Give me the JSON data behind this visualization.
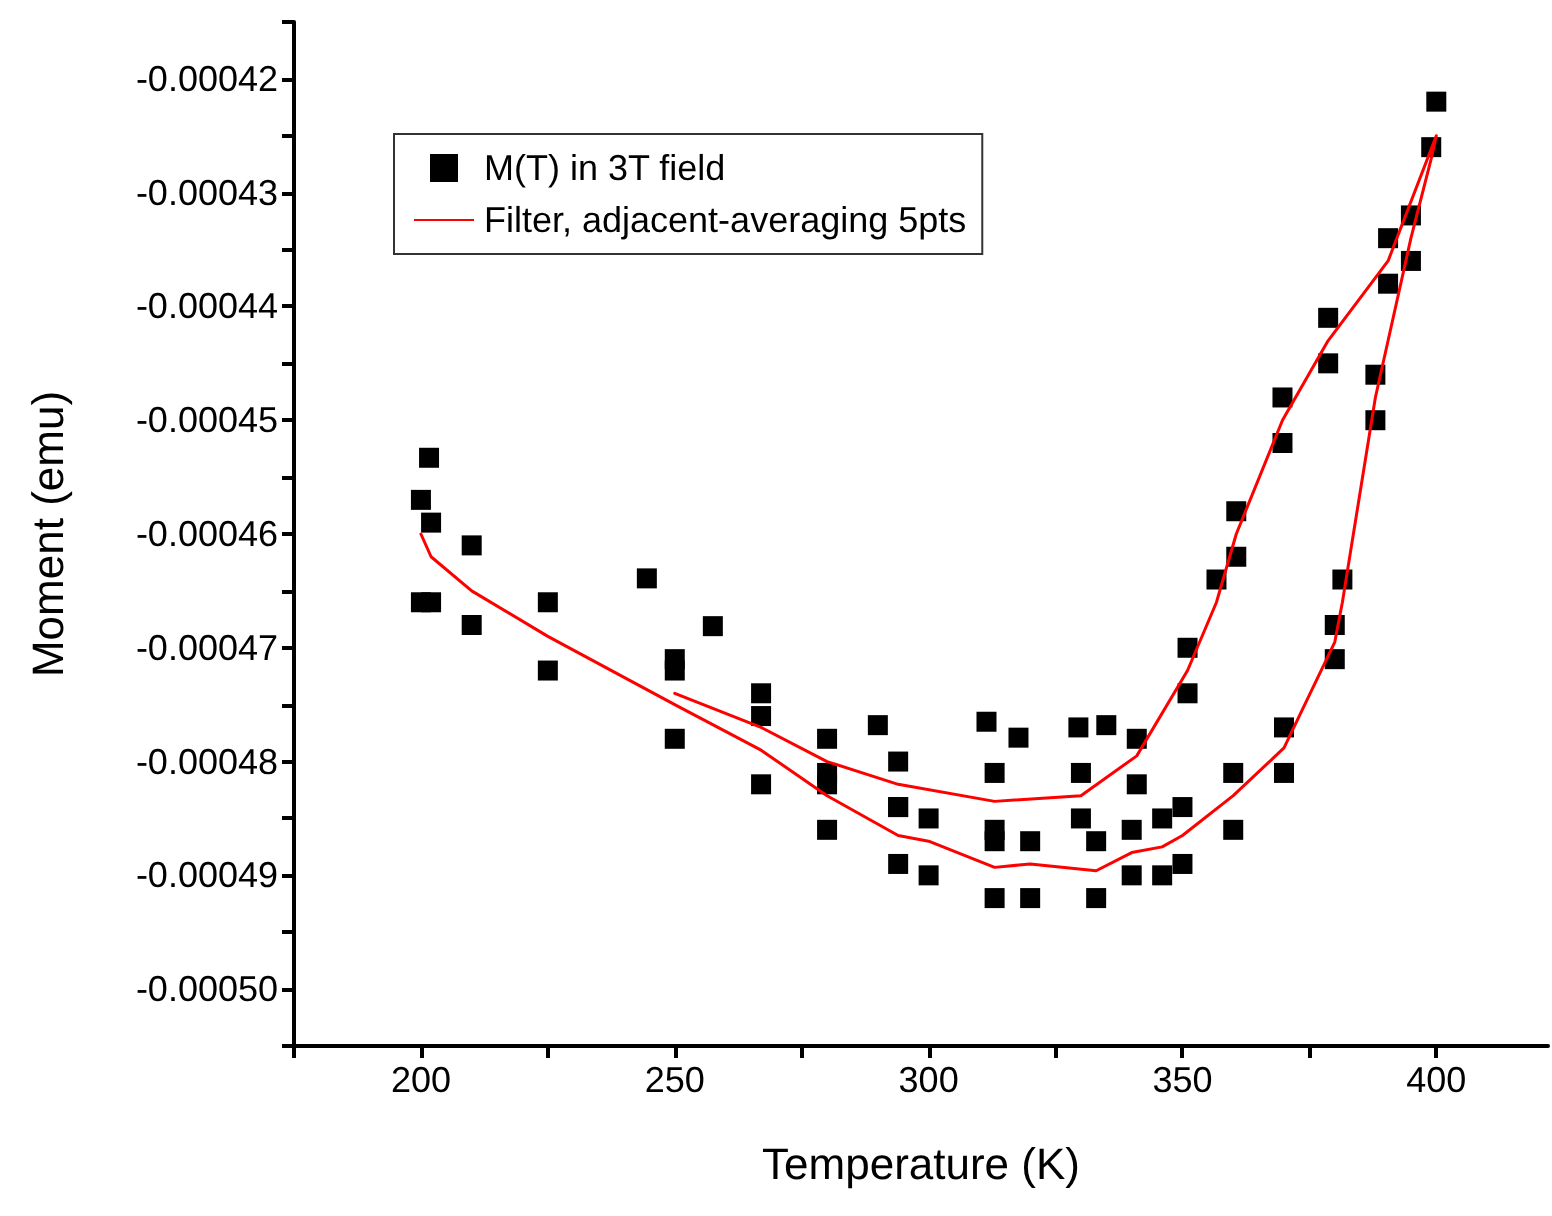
{
  "chart_data": {
    "type": "scatter",
    "xlabel": "Temperature (K)",
    "ylabel": "Moment (emu)",
    "xlim": [
      175,
      422
    ],
    "ylim": [
      -0.000505,
      -0.000415
    ],
    "xticks": [
      {
        "value": 175,
        "label": null
      },
      200,
      {
        "value": 225,
        "label": null
      },
      250,
      {
        "value": 275,
        "label": null
      },
      300,
      {
        "value": 325,
        "label": null
      },
      350,
      {
        "value": 375,
        "label": null
      },
      400
    ],
    "yticks": [
      {
        "value": -0.000505,
        "label": null
      },
      {
        "value": -0.0005,
        "label": "-0.00050"
      },
      {
        "value": -0.000495,
        "label": null
      },
      {
        "value": -0.00049,
        "label": "-0.00049"
      },
      {
        "value": -0.000485,
        "label": null
      },
      {
        "value": -0.00048,
        "label": "-0.00048"
      },
      {
        "value": -0.000475,
        "label": null
      },
      {
        "value": -0.00047,
        "label": "-0.00047"
      },
      {
        "value": -0.000465,
        "label": null
      },
      {
        "value": -0.00046,
        "label": "-0.00046"
      },
      {
        "value": -0.000455,
        "label": null
      },
      {
        "value": -0.00045,
        "label": "-0.00045"
      },
      {
        "value": -0.000445,
        "label": null
      },
      {
        "value": -0.00044,
        "label": "-0.00044"
      },
      {
        "value": -0.000435,
        "label": null
      },
      {
        "value": -0.00043,
        "label": "-0.00043"
      },
      {
        "value": -0.000425,
        "label": null
      },
      {
        "value": -0.00042,
        "label": "-0.00042"
      },
      {
        "value": -0.000415,
        "label": null
      }
    ],
    "grid": false,
    "legend": "top left",
    "marker": "square",
    "series": [
      {
        "name": "M(T) in 3T field",
        "color": "#000000",
        "x": [
          200,
          200,
          201.6,
          202,
          202,
          210,
          210,
          225,
          225,
          244.5,
          250,
          250,
          257.5,
          267,
          267,
          280,
          280,
          290,
          294,
          294,
          300,
          300,
          311.4,
          313,
          313,
          317.7,
          320,
          320,
          329.5,
          333,
          333,
          335,
          340,
          340,
          346,
          346,
          350,
          350,
          360,
          360,
          370,
          370,
          380,
          380,
          381.5,
          388,
          388,
          395,
          395,
          399,
          400,
          390.5,
          390.5,
          378.7,
          378.7,
          369.7,
          369.7,
          360.6,
          360.6,
          356.7,
          351,
          351,
          341,
          341,
          330,
          330,
          313,
          313,
          294,
          294,
          280,
          280,
          267,
          250
        ],
        "values": [
          -0.000457,
          -0.000466,
          -0.0004533,
          -0.000459,
          -0.000466,
          -0.000461,
          -0.000468,
          -0.000466,
          -0.000472,
          -0.0004639,
          -0.000472,
          -0.000478,
          -0.0004681,
          -0.000476,
          -0.000482,
          -0.000481,
          -0.000486,
          -0.0004768,
          -0.000484,
          -0.000489,
          -0.000485,
          -0.00049,
          -0.0004765,
          -0.000487,
          -0.000492,
          -0.0004779,
          -0.000487,
          -0.000492,
          -0.000477,
          -0.000487,
          -0.000492,
          -0.0004768,
          -0.000486,
          -0.00049,
          -0.000485,
          -0.00049,
          -0.000484,
          -0.000489,
          -0.000481,
          -0.000486,
          -0.000477,
          -0.000481,
          -0.000468,
          -0.000471,
          -0.000464,
          -0.000446,
          -0.00045,
          -0.000432,
          -0.000436,
          -0.000426,
          -0.000422,
          -0.000434,
          -0.000438,
          -0.000441,
          -0.000445,
          -0.000448,
          -0.000452,
          -0.000458,
          -0.000462,
          -0.000464,
          -0.00047,
          -0.000474,
          -0.000478,
          -0.000482,
          -0.000481,
          -0.000485,
          -0.000481,
          -0.000486,
          -0.00048,
          -0.000484,
          -0.000478,
          -0.000482,
          -0.000474,
          -0.000471
        ]
      },
      {
        "name": "Filter, adjacent-averaging 5pts",
        "type": "line",
        "color": "#ff0000",
        "marker": "none",
        "x": [
          200,
          202,
          210,
          225,
          250,
          267,
          280,
          294,
          300,
          313,
          320,
          333,
          340,
          346,
          350,
          360,
          370,
          380,
          381.5,
          388,
          395,
          399,
          400,
          390.5,
          378.7,
          369.7,
          360.6,
          356.7,
          351,
          341,
          330,
          313,
          294,
          280,
          267,
          250
        ],
        "values": [
          -0.00046,
          -0.000462,
          -0.000465,
          -0.000469,
          -0.000475,
          -0.000479,
          -0.000483,
          -0.0004865,
          -0.000487,
          -0.0004893,
          -0.000489,
          -0.0004896,
          -0.000488,
          -0.0004875,
          -0.0004865,
          -0.000483,
          -0.0004788,
          -0.0004695,
          -0.000466,
          -0.000448,
          -0.000434,
          -0.000427,
          -0.000425,
          -0.000436,
          -0.000443,
          -0.00045,
          -0.00046,
          -0.000466,
          -0.000472,
          -0.0004795,
          -0.000483,
          -0.0004835,
          -0.000482,
          -0.00048,
          -0.000477,
          -0.000474
        ]
      }
    ]
  }
}
